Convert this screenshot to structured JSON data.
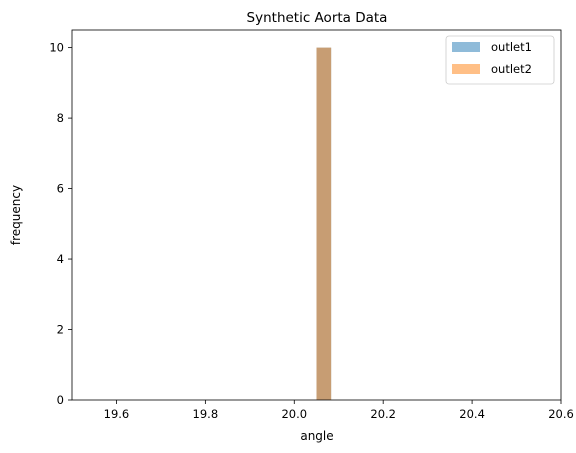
{
  "chart_data": {
    "type": "bar",
    "title": "Synthetic Aorta Data",
    "xlabel": "angle",
    "ylabel": "frequency",
    "xlim": [
      19.5,
      20.6
    ],
    "ylim": [
      0,
      10.5
    ],
    "xticks": [
      19.6,
      19.8,
      20.0,
      20.2,
      20.4,
      20.6
    ],
    "xtick_labels": [
      "19.6",
      "19.8",
      "20.0",
      "20.2",
      "20.4",
      "20.6"
    ],
    "yticks": [
      0,
      2,
      4,
      6,
      8,
      10
    ],
    "ytick_labels": [
      "0",
      "2",
      "4",
      "6",
      "8",
      "10"
    ],
    "grid": false,
    "legend_position": "top-right",
    "series": [
      {
        "name": "outlet1",
        "color": "#1f77b4",
        "opacity": 0.5,
        "bins": [
          {
            "x0": 20.05,
            "x1": 20.083,
            "count": 10
          }
        ]
      },
      {
        "name": "outlet2",
        "color": "#ff7f0e",
        "opacity": 0.5,
        "bins": [
          {
            "x0": 20.05,
            "x1": 20.083,
            "count": 10
          }
        ]
      }
    ]
  }
}
